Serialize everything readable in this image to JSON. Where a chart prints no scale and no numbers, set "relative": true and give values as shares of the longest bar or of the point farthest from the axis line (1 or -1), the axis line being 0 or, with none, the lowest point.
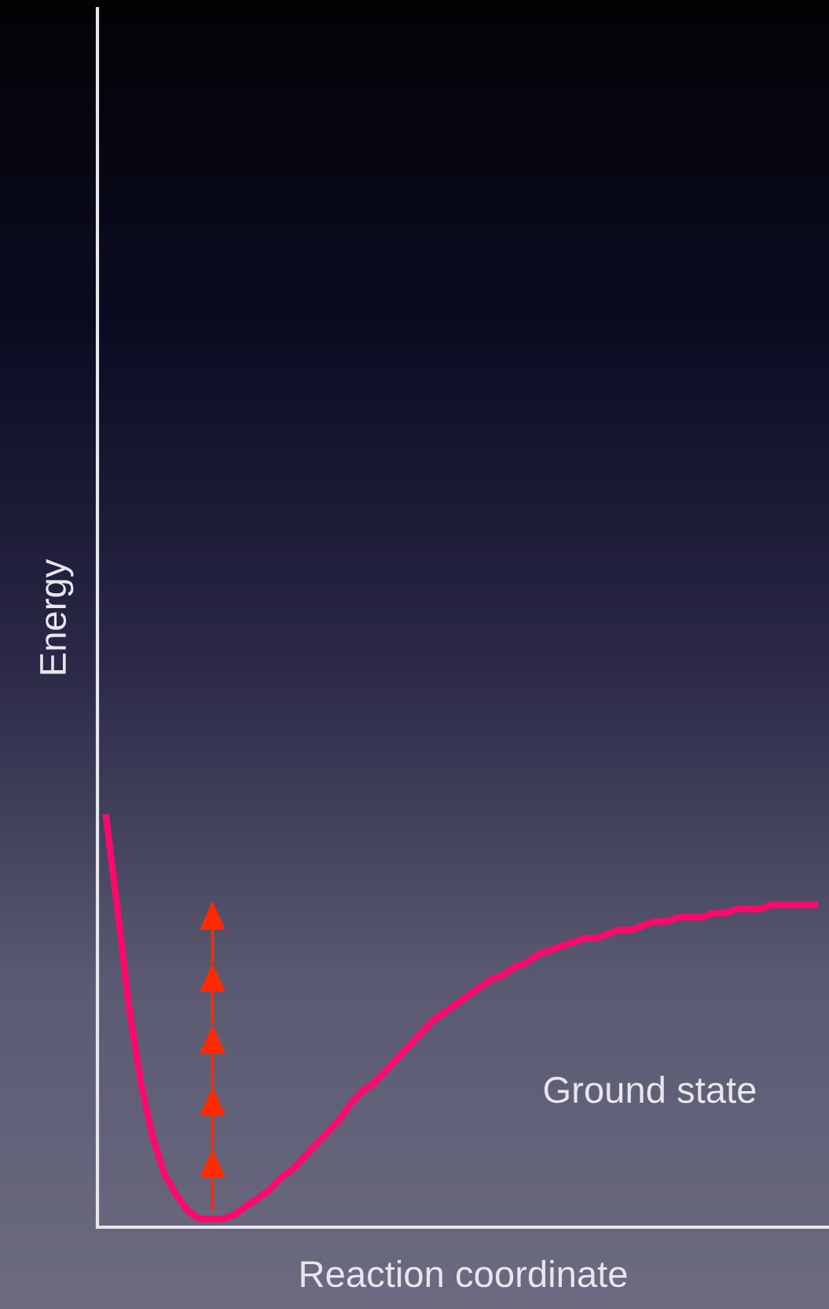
{
  "chart_data": {
    "type": "line",
    "relative": true,
    "xlabel": "Reaction coordinate",
    "ylabel": "Energy",
    "annotations": [
      "Ground state"
    ],
    "tick_labels": false,
    "grid": false,
    "legend": false,
    "marker": "none",
    "line_style": "solid",
    "categories": [
      null,
      null,
      null,
      null,
      null,
      null,
      null,
      null,
      null,
      null,
      null,
      null,
      null,
      null,
      null,
      null,
      null,
      null,
      null,
      null,
      null,
      null,
      null,
      null,
      null,
      null,
      null,
      null,
      null,
      null,
      null,
      null,
      null,
      null,
      null,
      null,
      null,
      null,
      null,
      null,
      null,
      null,
      null,
      null,
      null,
      null,
      null,
      null,
      null,
      null,
      null,
      null,
      null,
      null,
      null,
      null,
      null,
      null,
      null,
      null,
      null,
      null
    ],
    "series": [
      {
        "color": "#ff0a6c",
        "values": [
          1.0,
          0.77,
          0.53,
          0.35,
          0.22,
          0.13,
          0.08,
          0.04,
          0.02,
          0.02,
          0.02,
          0.03,
          0.05,
          0.07,
          0.09,
          0.12,
          0.14,
          0.17,
          0.2,
          0.23,
          0.26,
          0.3,
          0.33,
          0.35,
          0.38,
          0.41,
          0.44,
          0.47,
          0.5,
          0.52,
          0.54,
          0.56,
          0.58,
          0.6,
          0.61,
          0.63,
          0.64,
          0.66,
          0.67,
          0.68,
          0.69,
          0.7,
          0.7,
          0.71,
          0.72,
          0.72,
          0.73,
          0.74,
          0.74,
          0.75,
          0.75,
          0.75,
          0.76,
          0.76,
          0.77,
          0.77,
          0.77,
          0.78,
          0.78,
          0.78,
          0.78,
          0.78
        ]
      }
    ]
  }
}
